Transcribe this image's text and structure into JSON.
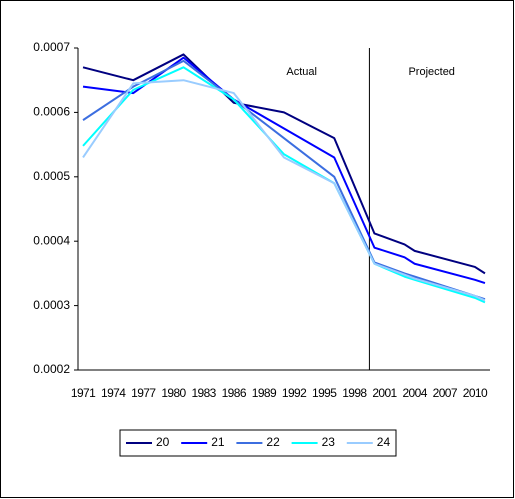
{
  "chart_data": {
    "type": "line",
    "annotations": [
      "Actual",
      "Projected"
    ],
    "x": [
      1971,
      1976,
      1981,
      1986,
      1991,
      1996,
      2000,
      2003,
      2004,
      2010,
      2011
    ],
    "series": [
      {
        "name": "20",
        "color": "#000080",
        "values": [
          0.00067,
          0.00065,
          0.00069,
          0.000615,
          0.0006,
          0.00056,
          0.000412,
          0.000395,
          0.000385,
          0.00036,
          0.00035
        ]
      },
      {
        "name": "21",
        "color": "#0000ff",
        "values": [
          0.00064,
          0.00063,
          0.000685,
          0.00062,
          0.000575,
          0.00053,
          0.00039,
          0.000375,
          0.000365,
          0.00034,
          0.000335
        ]
      },
      {
        "name": "22",
        "color": "#3c6ee0",
        "values": [
          0.000588,
          0.00064,
          0.00068,
          0.00062,
          0.00056,
          0.0005,
          0.000367,
          0.00035,
          0.000345,
          0.000315,
          0.00031
        ]
      },
      {
        "name": "23",
        "color": "#00ffff",
        "values": [
          0.000548,
          0.000635,
          0.00067,
          0.00062,
          0.000535,
          0.00049,
          0.000365,
          0.000345,
          0.00034,
          0.000312,
          0.000305
        ]
      },
      {
        "name": "24",
        "color": "#99ccff",
        "values": [
          0.00053,
          0.000645,
          0.00065,
          0.00063,
          0.00053,
          0.00049,
          0.000365,
          0.000348,
          0.000342,
          0.000315,
          0.000308
        ]
      }
    ],
    "divider_x": 1999.5,
    "xlim": [
      1970.5,
      2011.5
    ],
    "xticks": [
      1971,
      1974,
      1977,
      1980,
      1983,
      1986,
      1989,
      1992,
      1995,
      1998,
      2001,
      2004,
      2007,
      2010
    ],
    "ylim": [
      0.0002,
      0.0007
    ],
    "yticks": [
      0.0002,
      0.0003,
      0.0004,
      0.0005,
      0.0006,
      0.0007
    ],
    "grid": false,
    "legend": "bottom"
  }
}
